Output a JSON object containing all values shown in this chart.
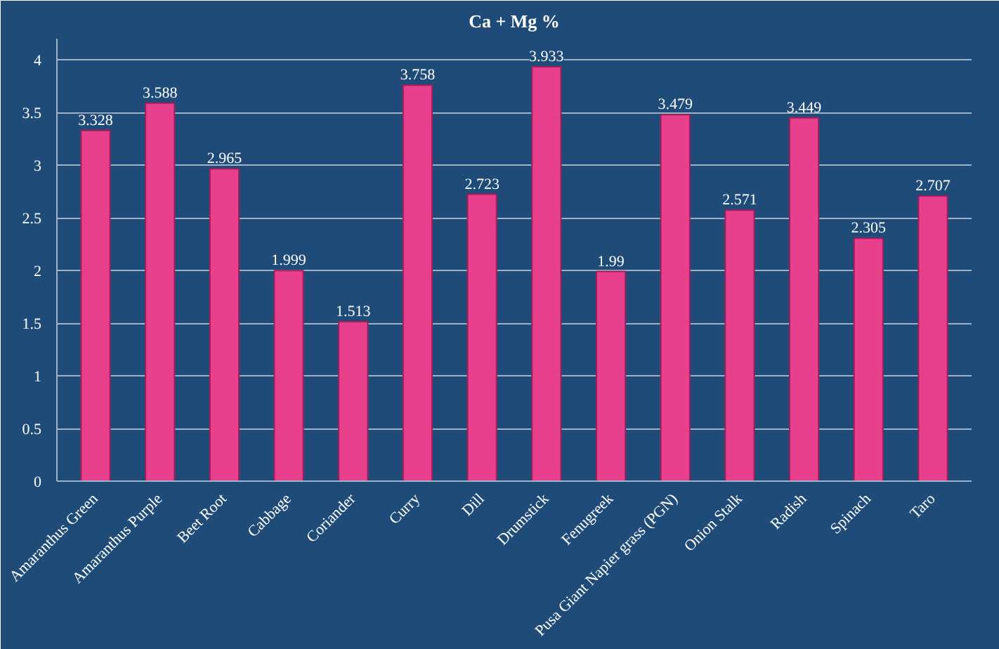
{
  "chart_data": {
    "type": "bar",
    "title": "Ca + Mg %",
    "categories": [
      "Amaranthus Green",
      "Amaranthus Purple",
      "Beet Root",
      "Cabbage",
      "Coriander",
      "Curry",
      "Dill",
      "Drumstick",
      "Fenugreek",
      "Pusa Giant Napier grass (PGN)",
      "Onion Stalk",
      "Radish",
      "Spinach",
      "Taro"
    ],
    "values": [
      3.328,
      3.588,
      2.965,
      1.999,
      1.513,
      3.758,
      2.723,
      3.933,
      1.99,
      3.479,
      2.571,
      3.449,
      2.305,
      2.707
    ],
    "color": "#e8408c",
    "ylim": [
      0,
      4.2
    ],
    "yticks": [
      0,
      0.5,
      1,
      1.5,
      2,
      2.5,
      3,
      3.5,
      4
    ],
    "grid": "y",
    "data_labels": true
  }
}
